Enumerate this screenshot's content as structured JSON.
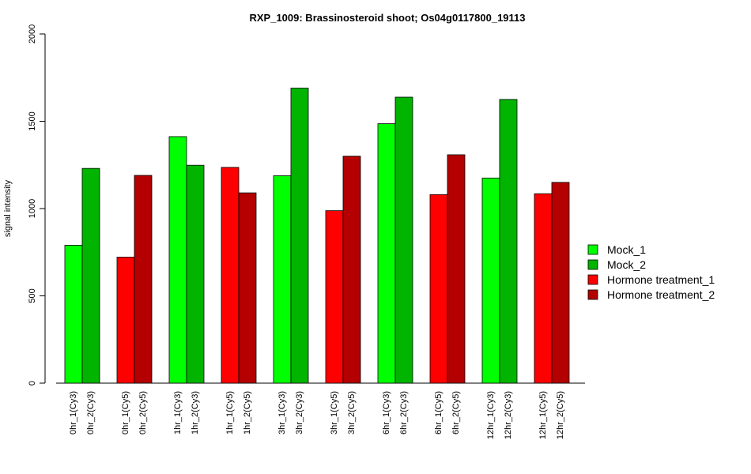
{
  "chart_data": {
    "type": "bar",
    "title": "RXP_1009: Brassinosteroid shoot; Os04g0117800_19113",
    "xlabel": "",
    "ylabel": "signal intensity",
    "ylim": [
      0,
      2000
    ],
    "yticks": [
      "0",
      "500",
      "1000",
      "1500",
      "2000"
    ],
    "ytick_values": [
      0,
      500,
      1000,
      1500,
      2000
    ],
    "grid": false,
    "legend_position": "right",
    "legend": [
      {
        "name": "Mock_1",
        "color": "#00FF00"
      },
      {
        "name": "Mock_2",
        "color": "#00B400"
      },
      {
        "name": "Hormone treatment_1",
        "color": "#FF0000"
      },
      {
        "name": "Hormone treatment_2",
        "color": "#B40000"
      }
    ],
    "bars": [
      {
        "label": "0hr_1(Cy3)",
        "value": 790,
        "color": "#00FF00"
      },
      {
        "label": "0hr_2(Cy3)",
        "value": 1230,
        "color": "#00B400"
      },
      {
        "label": "0hr_1(Cy5)",
        "value": 722,
        "color": "#FF0000"
      },
      {
        "label": "0hr_2(Cy5)",
        "value": 1190,
        "color": "#B40000"
      },
      {
        "label": "1hr_1(Cy3)",
        "value": 1412,
        "color": "#00FF00"
      },
      {
        "label": "1hr_2(Cy3)",
        "value": 1248,
        "color": "#00B400"
      },
      {
        "label": "1hr_1(Cy5)",
        "value": 1236,
        "color": "#FF0000"
      },
      {
        "label": "1hr_2(Cy5)",
        "value": 1090,
        "color": "#B40000"
      },
      {
        "label": "3hr_1(Cy3)",
        "value": 1188,
        "color": "#00FF00"
      },
      {
        "label": "3hr_2(Cy3)",
        "value": 1690,
        "color": "#00B400"
      },
      {
        "label": "3hr_1(Cy5)",
        "value": 988,
        "color": "#FF0000"
      },
      {
        "label": "3hr_2(Cy5)",
        "value": 1300,
        "color": "#B40000"
      },
      {
        "label": "6hr_1(Cy3)",
        "value": 1486,
        "color": "#00FF00"
      },
      {
        "label": "6hr_2(Cy3)",
        "value": 1638,
        "color": "#00B400"
      },
      {
        "label": "6hr_1(Cy5)",
        "value": 1080,
        "color": "#FF0000"
      },
      {
        "label": "6hr_2(Cy5)",
        "value": 1308,
        "color": "#B40000"
      },
      {
        "label": "12hr_1(Cy3)",
        "value": 1175,
        "color": "#00FF00"
      },
      {
        "label": "12hr_2(Cy3)",
        "value": 1625,
        "color": "#00B400"
      },
      {
        "label": "12hr_1(Cy5)",
        "value": 1085,
        "color": "#FF0000"
      },
      {
        "label": "12hr_2(Cy5)",
        "value": 1150,
        "color": "#B40000"
      }
    ]
  }
}
